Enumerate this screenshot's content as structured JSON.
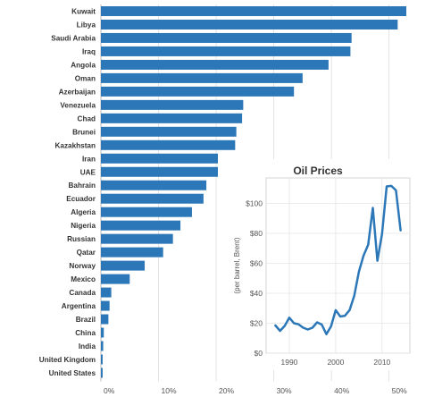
{
  "chart_data": [
    {
      "type": "bar",
      "orientation": "horizontal",
      "categories": [
        "Kuwait",
        "Libya",
        "Saudi Arabia",
        "Iraq",
        "Angola",
        "Oman",
        "Azerbaijan",
        "Venezuela",
        "Chad",
        "Brunei",
        "Kazakhstan",
        "Iran",
        "UAE",
        "Bahrain",
        "Ecuador",
        "Algeria",
        "Nigeria",
        "Russian",
        "Qatar",
        "Norway",
        "Mexico",
        "Canada",
        "Argentina",
        "Brazil",
        "China",
        "India",
        "United Kingdom",
        "United States"
      ],
      "values": [
        53,
        51.5,
        43.5,
        43.3,
        39.5,
        35,
        33.5,
        24.7,
        24.5,
        23.5,
        23.3,
        20.3,
        20.3,
        18.3,
        17.8,
        15.8,
        13.8,
        12.5,
        10.8,
        7.6,
        5,
        1.8,
        1.5,
        1.3,
        0.5,
        0.4,
        0.3,
        0.3
      ],
      "xlim": [
        0,
        53
      ],
      "xticks": [
        "0%",
        "10%",
        "20%",
        "30%",
        "40%",
        "50%"
      ],
      "xtick_values": [
        0,
        10,
        20,
        30,
        40,
        50
      ],
      "bar_color": "#2c77b8",
      "grid": "vertical"
    },
    {
      "type": "line",
      "title": "Oil Prices",
      "ylabel": "(per barrel, Brent)",
      "xlim": [
        1985,
        2016
      ],
      "ylim": [
        0,
        117
      ],
      "xticks": [
        "1990",
        "2000",
        "2010"
      ],
      "xtick_values": [
        1990,
        2000,
        2010
      ],
      "yticks": [
        "$0",
        "$20",
        "$40",
        "$60",
        "$80",
        "$100"
      ],
      "ytick_values": [
        0,
        20,
        40,
        60,
        80,
        100
      ],
      "line_color": "#2c77b8",
      "x": [
        1987,
        1988,
        1989,
        1990,
        1991,
        1992,
        1993,
        1994,
        1995,
        1996,
        1997,
        1998,
        1999,
        2000,
        2001,
        2002,
        2003,
        2004,
        2005,
        2006,
        2007,
        2008,
        2009,
        2010,
        2011,
        2012,
        2013,
        2014
      ],
      "values": [
        18.5,
        14.9,
        18.2,
        23.7,
        20,
        19.3,
        17,
        15.8,
        17,
        20.6,
        19.1,
        12.7,
        17.9,
        28.7,
        24.5,
        25,
        28.8,
        38.3,
        54.4,
        65.1,
        72.4,
        97,
        61.7,
        79.6,
        111.3,
        111.7,
        108.7,
        82
      ]
    }
  ]
}
